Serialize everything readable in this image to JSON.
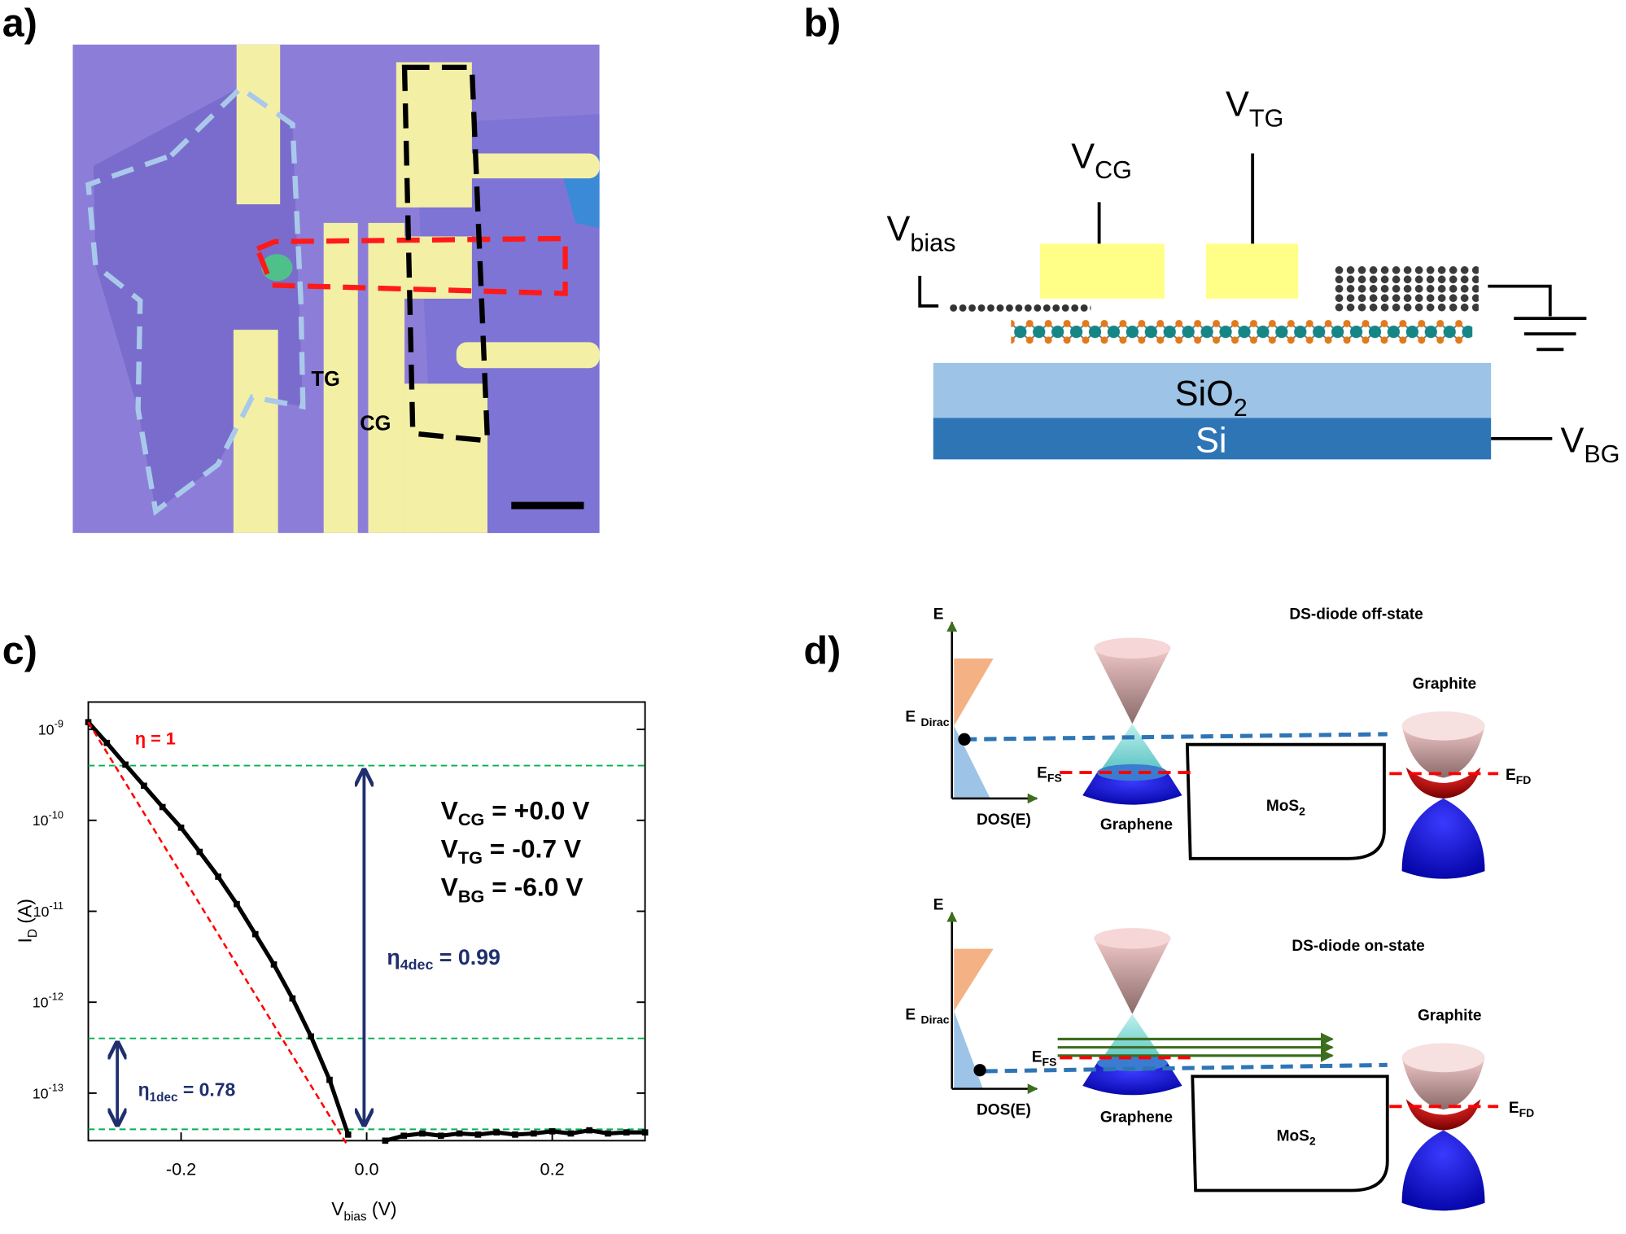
{
  "panel_labels": [
    "a)",
    "b)",
    "c)",
    "d)"
  ],
  "panel_a": {
    "labels": [
      "TG",
      "CG"
    ]
  },
  "panel_b": {
    "v_cg": {
      "main": "V",
      "sub": "CG"
    },
    "v_tg": {
      "main": "V",
      "sub": "TG"
    },
    "v_bias": {
      "main": "V",
      "sub": "bias"
    },
    "v_bg": {
      "main": "V",
      "sub": "BG"
    },
    "sio2": {
      "main": "SiO",
      "sub": "2"
    },
    "si": "Si"
  },
  "chart_data": {
    "type": "scatter",
    "xlabel": {
      "main": "V",
      "sub": "bias",
      "rest": " (V)"
    },
    "ylabel": {
      "main": "I",
      "sub": "D",
      "rest": " (A)"
    },
    "xlim": [
      -0.3,
      0.3
    ],
    "xticks": [
      -0.2,
      {
        "value": 0,
        "label": "0.0"
      },
      0.2
    ],
    "ylim": [
      3e-14,
      2e-09
    ],
    "yscale": "log",
    "yticks": [
      {
        "value": 1e-13,
        "label": "10",
        "exponent": "-13"
      },
      {
        "value": 1e-12,
        "label": "10",
        "exponent": "-12"
      },
      {
        "value": 1e-11,
        "label": "10",
        "exponent": "-11"
      },
      {
        "value": 1e-10,
        "label": "10",
        "exponent": "-10"
      },
      {
        "value": 1e-09,
        "label": "10",
        "exponent": "-9"
      }
    ],
    "series": [
      {
        "color": "#000000",
        "style": "markers",
        "x": [
          -0.3,
          -0.28,
          -0.26,
          -0.24,
          -0.22,
          -0.2,
          -0.18,
          -0.16,
          -0.14,
          -0.12,
          -0.1,
          -0.08,
          -0.06,
          -0.04,
          -0.02,
          0.02,
          0.04,
          0.06,
          0.08,
          0.1,
          0.12,
          0.14,
          0.16,
          0.18,
          0.2,
          0.22,
          0.24,
          0.26,
          0.28,
          0.3
        ],
        "values": [
          1.2e-09,
          7.1e-10,
          4.1e-10,
          2.4e-10,
          1.4e-10,
          8.3e-11,
          4.5e-11,
          2.4e-11,
          1.2e-11,
          5.6e-12,
          2.6e-12,
          1.1e-12,
          4.2e-13,
          1.4e-13,
          3.5e-14,
          3e-14,
          3.4e-14,
          3.6e-14,
          3.4e-14,
          3.6e-14,
          3.5e-14,
          3.7e-14,
          3.5e-14,
          3.6e-14,
          3.8e-14,
          3.6e-14,
          3.9e-14,
          3.6e-14,
          3.7e-14,
          3.7e-14
        ]
      },
      {
        "color": "#ff0000",
        "style": "dashed-line",
        "x": [
          -0.3,
          -0.02
        ],
        "values": [
          1.2e-09,
          2.6e-14
        ]
      }
    ],
    "hlines": {
      "color": "#00b050",
      "values": [
        4e-10,
        4e-13,
        4e-14
      ]
    },
    "annotations": {
      "eta_ideal": "η = 1",
      "eta_4dec": {
        "main": "η",
        "sub": "4dec",
        "rest": " = 0.99"
      },
      "eta_1dec": {
        "main": "η",
        "sub": "1dec",
        "rest": " = 0.78"
      },
      "gates": [
        {
          "main": "V",
          "sub": "CG",
          "rest": " = +0.0 V"
        },
        {
          "main": "V",
          "sub": "TG",
          "rest": " = -0.7 V"
        },
        {
          "main": "V",
          "sub": "BG",
          "rest": " = -6.0 V"
        }
      ]
    }
  },
  "panel_d": {
    "states": [
      {
        "title": "DS-diode off-state",
        "graphite": "Graphite",
        "e_axis": "E",
        "e_dirac": {
          "main": "E",
          "sub": "Dirac"
        },
        "e_fs": {
          "main": "E",
          "sub": "FS"
        },
        "e_fd": {
          "main": "E",
          "sub": "FD"
        },
        "dos": "DOS(E)",
        "graphene": "Graphene",
        "mos2": {
          "main": "MoS",
          "sub": "2"
        }
      },
      {
        "title": "DS-diode on-state",
        "graphite": "Graphite",
        "e_axis": "E",
        "e_dirac": {
          "main": "E",
          "sub": "Dirac"
        },
        "e_fs": {
          "main": "E",
          "sub": "FS"
        },
        "e_fd": {
          "main": "E",
          "sub": "FD"
        },
        "dos": "DOS(E)",
        "graphene": "Graphene",
        "mos2": {
          "main": "MoS",
          "sub": "2"
        }
      }
    ]
  }
}
